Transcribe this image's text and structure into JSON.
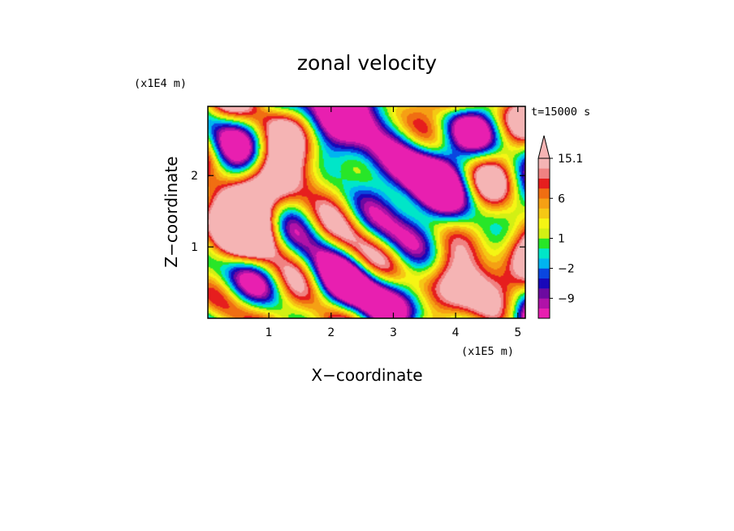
{
  "chart_data": {
    "type": "heatmap",
    "title": "zonal velocity",
    "xlabel": "X−coordinate",
    "ylabel": "Z−coordinate",
    "x_scale_label": "(x1E5 m)",
    "y_scale_label": "(x1E4 m)",
    "time_label": "t=15000 s",
    "xlim": [
      0.02,
      5.12
    ],
    "ylim": [
      0.0,
      2.97
    ],
    "x_ticks": [
      "1",
      "2",
      "3",
      "4",
      "5"
    ],
    "x_tick_values": [
      1,
      2,
      3,
      4,
      5
    ],
    "y_ticks": [
      "1",
      "2"
    ],
    "y_tick_values": [
      1,
      2
    ],
    "colorbar": {
      "tick_labels": [
        "15.1",
        "6",
        "1",
        "−2",
        "−9"
      ],
      "levels": [
        -16,
        -12,
        -9,
        -7,
        -4,
        -2,
        -1,
        0,
        1,
        2,
        3,
        4,
        6,
        8,
        11,
        15.1
      ],
      "colors": [
        "#e81fb0",
        "#b012a8",
        "#6c0aa0",
        "#1808b8",
        "#0a46e0",
        "#00b4f0",
        "#00e6c8",
        "#28e628",
        "#d2f014",
        "#f5f514",
        "#f5c814",
        "#f5a014",
        "#f06e12",
        "#e61e1e",
        "#f08282",
        "#f5b4b4"
      ],
      "extend": "top"
    }
  }
}
